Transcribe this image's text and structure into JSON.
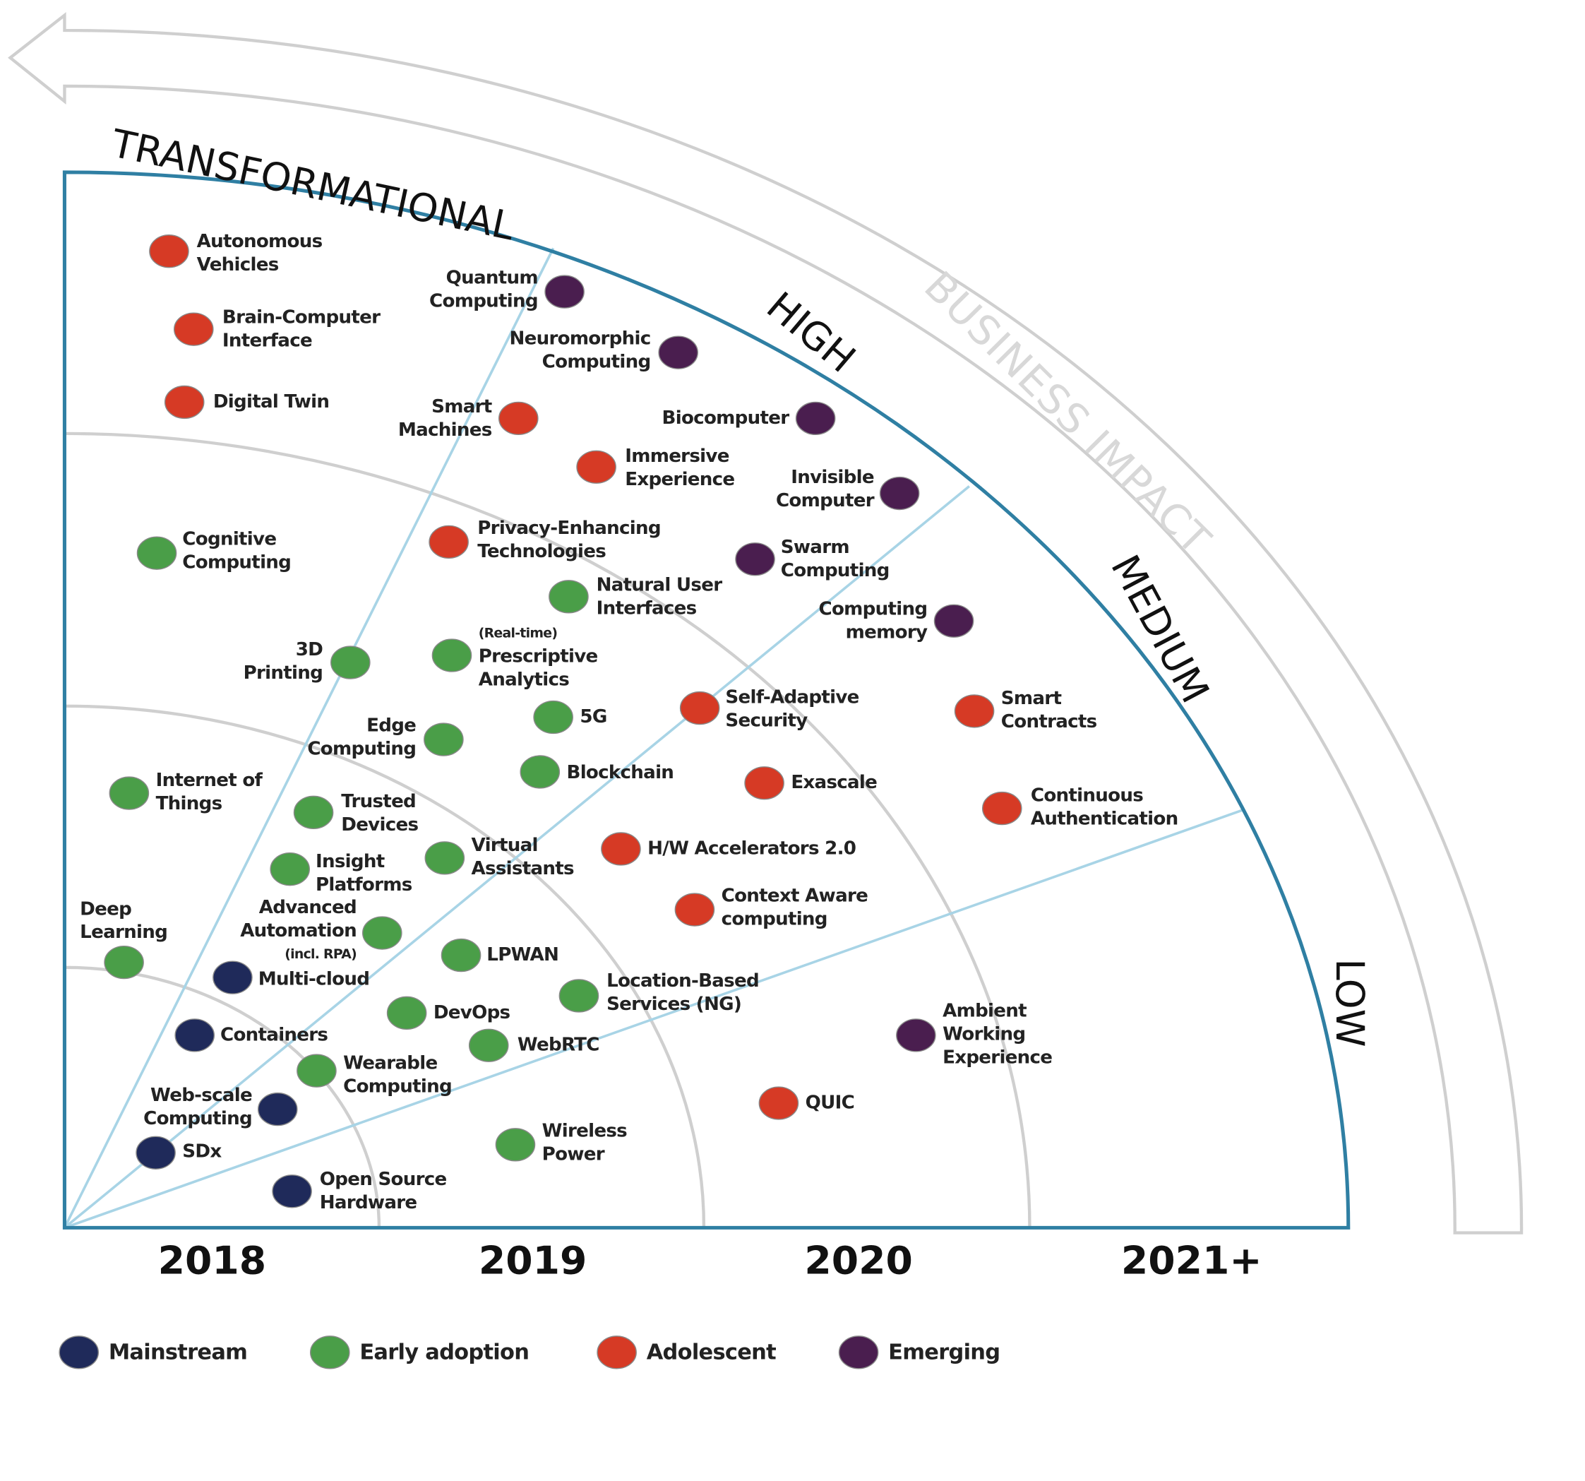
{
  "impact": {
    "title": "BUSINESS IMPACT",
    "levels": [
      "TRANSFORMATIONAL",
      "HIGH",
      "MEDIUM",
      "LOW"
    ]
  },
  "years": [
    "2018",
    "2019",
    "2020",
    "2021+"
  ],
  "stages": [
    {
      "name": "Mainstream",
      "color": "#1f2a5a",
      "technologies": [
        "Multi-cloud",
        "Containers",
        "Web-scale\nComputing",
        "SDx",
        "Open Source\nHardware"
      ]
    },
    {
      "name": "Early adoption",
      "color": "#4a9e48",
      "technologies": [
        "Cognitive\nComputing",
        "Natural User\nInterfaces",
        "3D\nPrinting",
        "(Real-time)\nPrescriptive\nAnalytics",
        "5G",
        "Edge\nComputing",
        "Blockchain",
        "Internet of\nThings",
        "Trusted\nDevices",
        "Virtual\nAssistants",
        "Insight\nPlatforms",
        "Advanced\nAutomation\n(incl. RPA)",
        "Deep\nLearning",
        "LPWAN",
        "Location-Based\nServices (NG)",
        "DevOps",
        "WebRTC",
        "Wearable\nComputing",
        "Wireless\nPower"
      ]
    },
    {
      "name": "Adolescent",
      "color": "#d63a25",
      "technologies": [
        "Autonomous\nVehicles",
        "Brain-Computer\nInterface",
        "Digital Twin",
        "Smart\nMachines",
        "Immersive\nExperience",
        "Privacy-Enhancing\nTechnologies",
        "Self-Adaptive\nSecurity",
        "Smart\nContracts",
        "Exascale",
        "Continuous\nAuthentication",
        "H/W Accelerators 2.0",
        "Context Aware\ncomputing",
        "QUIC"
      ]
    },
    {
      "name": "Emerging",
      "color": "#4a1e4f",
      "technologies": [
        "Quantum\nComputing",
        "Neuromorphic\nComputing",
        "Biocomputer",
        "Invisible\nComputer",
        "Swarm\nComputing",
        "Computing\nmemory",
        "Ambient\nWorking\nExperience"
      ]
    }
  ]
}
